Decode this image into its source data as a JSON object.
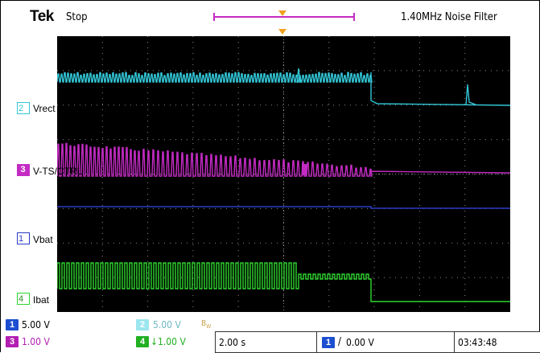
{
  "header": {
    "brand": "Tek",
    "state": "Stop",
    "right_info": "1.40MHz  Noise Filter"
  },
  "channels": [
    {
      "num": "2",
      "name": "Vrect",
      "color": "#33c6d6"
    },
    {
      "num": "3",
      "name": "V-TS/CTRL",
      "color": "#c42bc4"
    },
    {
      "num": "1",
      "name": "Vbat",
      "color": "#2a3bc4"
    },
    {
      "num": "4",
      "name": "Ibat",
      "color": "#2ed62e"
    }
  ],
  "annotations": {
    "vrect": {
      "main": "V",
      "sub": "RECT"
    },
    "vts": {
      "main": "V",
      "sub": "TS/CTRL"
    },
    "ibat": {
      "main": "I",
      "sub": "BAT"
    },
    "vbat": {
      "main": "V",
      "sub": "BAT"
    }
  },
  "readouts": {
    "ch1_scale": "5.00 V",
    "ch2_scale": "5.00 V",
    "ch3_scale": "1.00 V",
    "ch4_scale": "1.00 V",
    "bw_mark": "B_W",
    "timebase": "2.00 s",
    "trigger": "0.00 V",
    "clock": "03:43:48"
  },
  "colors": {
    "background": "#000000",
    "grid": "#8a8a8a",
    "cyan": "#33c6d6",
    "magenta": "#c42bc4",
    "blue": "#2a3bc4",
    "green": "#2ed62e",
    "trigger_marker": "#f0a020",
    "record_bar": "#c42bc4"
  }
}
